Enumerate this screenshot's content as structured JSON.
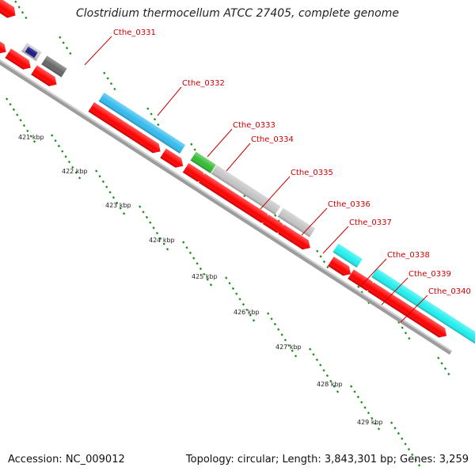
{
  "title": "Clostridium thermocellum ATCC 27405, complete genome",
  "footer": {
    "accession": "Accession: NC_009012",
    "summary": "Topology: circular; Length: 3,843,301 bp; Genes: 3,259"
  },
  "gene_labels": [
    "Cthe_0331",
    "Cthe_0332",
    "Cthe_0333",
    "Cthe_0334",
    "Cthe_0335",
    "Cthe_0336",
    "Cthe_0337",
    "Cthe_0338",
    "Cthe_0339",
    "Cthe_0340"
  ],
  "ruler_labels": [
    "421 kbp",
    "422 kbp",
    "423 kbp",
    "424 kbp",
    "425 kbp",
    "426 kbp",
    "427 kbp",
    "428 kbp",
    "429 kbp"
  ],
  "colors": {
    "cds": "#ff0000",
    "backbone": "#a0a0a0",
    "tick": "#1a8a1a",
    "label": "#cc0000",
    "lightblue": "#33bbee",
    "cyan": "#22eeee",
    "green": "#33bb33",
    "lightgray": "#c4c4c4",
    "darkgray": "#666666",
    "navy": "#1a1a88"
  }
}
